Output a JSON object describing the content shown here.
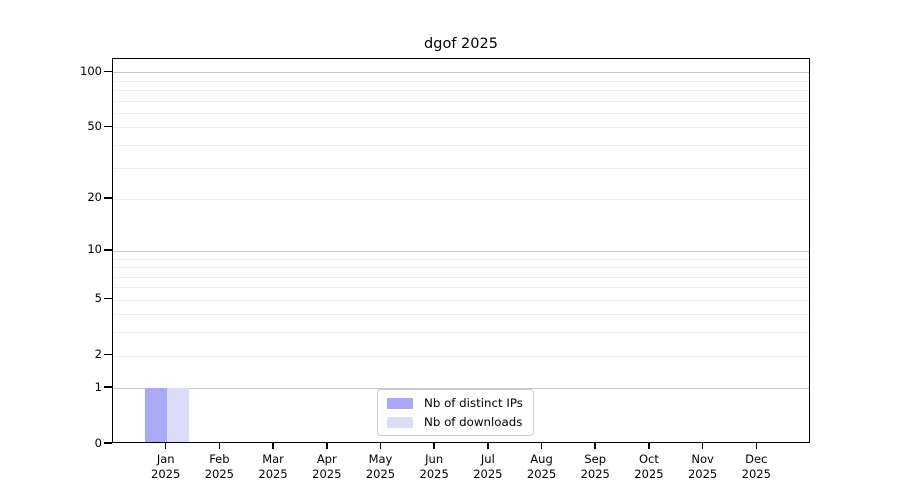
{
  "title": "dgof 2025",
  "chart_data": {
    "type": "bar",
    "title": "dgof 2025",
    "categories": [
      "Jan 2025",
      "Feb 2025",
      "Mar 2025",
      "Apr 2025",
      "May 2025",
      "Jun 2025",
      "Jul 2025",
      "Aug 2025",
      "Sep 2025",
      "Oct 2025",
      "Nov 2025",
      "Dec 2025"
    ],
    "x_tick_line1": [
      "Jan",
      "Feb",
      "Mar",
      "Apr",
      "May",
      "Jun",
      "Jul",
      "Aug",
      "Sep",
      "Oct",
      "Nov",
      "Dec"
    ],
    "x_tick_line2": "2025",
    "series": [
      {
        "name": "Nb of distinct IPs",
        "color": "#a9a9f7",
        "values": [
          1,
          0,
          0,
          0,
          0,
          0,
          0,
          0,
          0,
          0,
          0,
          0
        ]
      },
      {
        "name": "Nb of downloads",
        "color": "#dcdcf9",
        "values": [
          1,
          0,
          0,
          0,
          0,
          0,
          0,
          0,
          0,
          0,
          0,
          0
        ]
      }
    ],
    "xlabel": "",
    "ylabel": "",
    "yscale": "log1p",
    "ylim": [
      0,
      118
    ],
    "y_tick_values": [
      0,
      1,
      2,
      5,
      10,
      20,
      50,
      100
    ],
    "y_major_gridlines": [
      1,
      10,
      100
    ],
    "y_minor_gridlines": [
      2,
      3,
      4,
      5,
      6,
      7,
      8,
      9,
      20,
      30,
      40,
      50,
      60,
      70,
      80,
      90
    ],
    "grid": true,
    "legend_position": "lower center"
  },
  "legend": {
    "items": [
      {
        "label": "Nb of distinct IPs",
        "color": "#a9a9f7"
      },
      {
        "label": "Nb of downloads",
        "color": "#dcdcf9"
      }
    ]
  },
  "colors": {
    "axis": "#000000",
    "grid_major": "#c8c8c8",
    "grid_minor": "#ededed",
    "background": "#ffffff",
    "text": "#000000",
    "legend_border": "#cccccc",
    "bar_distinct_ips": "#a9a9f7",
    "bar_downloads": "#dcdcf9"
  }
}
